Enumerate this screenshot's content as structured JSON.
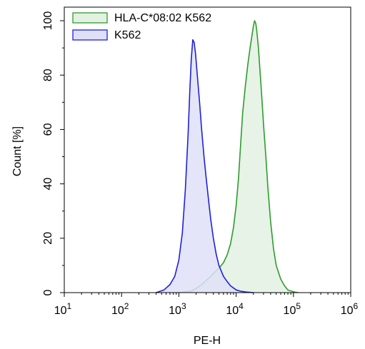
{
  "chart_data": {
    "type": "area",
    "xlabel": "PE-H",
    "ylabel": "Count [%]",
    "xscale": "log",
    "xlim": [
      10,
      1000000
    ],
    "ylim": [
      0,
      105
    ],
    "x_ticks": [
      {
        "value": 10,
        "base": "10",
        "exp": "1"
      },
      {
        "value": 100,
        "base": "10",
        "exp": "2"
      },
      {
        "value": 1000,
        "base": "10",
        "exp": "3"
      },
      {
        "value": 10000,
        "base": "10",
        "exp": "4"
      },
      {
        "value": 100000,
        "base": "10",
        "exp": "5"
      },
      {
        "value": 1000000,
        "base": "10",
        "exp": "6"
      }
    ],
    "y_ticks": [
      "0",
      "20",
      "40",
      "60",
      "80",
      "100"
    ],
    "grid": false,
    "legend_position": "top-left",
    "series": [
      {
        "name": "HLA-C*08:02 K562",
        "line_color": "#2e9c2e",
        "fill_color": "#e2f1e2",
        "x": [
          1000,
          1600,
          2000,
          2500,
          3200,
          4000,
          5000,
          6000,
          7000,
          8000,
          9000,
          10000,
          11000,
          12000,
          13000,
          14500,
          16000,
          17500,
          19000,
          20000,
          21000,
          22000,
          23000,
          24500,
          26000,
          28000,
          30000,
          33000,
          36000,
          40000,
          45000,
          50000,
          60000,
          70000,
          80000,
          100000,
          120000
        ],
        "y": [
          0,
          0.5,
          1.5,
          3,
          5,
          7,
          9,
          11,
          14,
          18,
          24,
          32,
          42,
          55,
          66,
          76,
          84,
          90,
          95,
          98,
          100,
          99,
          96,
          90,
          82,
          72,
          62,
          50,
          38,
          26,
          16,
          10,
          5,
          2.5,
          1,
          0.3,
          0
        ]
      },
      {
        "name": "K562",
        "line_color": "#2020dd",
        "fill_color": "#dfe0f7",
        "x": [
          400,
          550,
          700,
          850,
          1000,
          1150,
          1300,
          1450,
          1550,
          1650,
          1750,
          1850,
          1950,
          2100,
          2300,
          2500,
          2750,
          3000,
          3300,
          3600,
          4000,
          4500,
          5000,
          6000,
          7000,
          8000,
          10000,
          12000,
          15000,
          20000
        ],
        "y": [
          0,
          1,
          3,
          6,
          12,
          22,
          38,
          58,
          74,
          86,
          93,
          92,
          88,
          80,
          70,
          60,
          50,
          42,
          34,
          27,
          20,
          14,
          10,
          6,
          4,
          2.5,
          1,
          0.5,
          0.2,
          0
        ]
      }
    ]
  }
}
